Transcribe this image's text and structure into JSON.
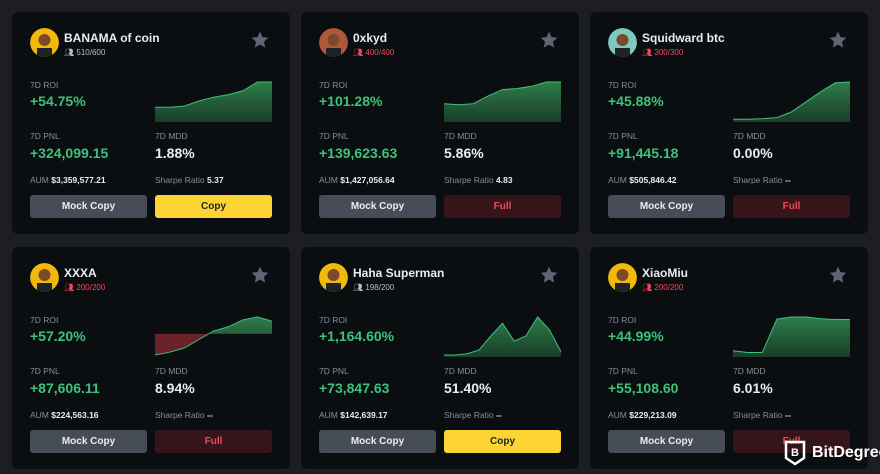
{
  "labels": {
    "roi": "7D ROI",
    "pnl": "7D PNL",
    "mdd": "7D MDD",
    "aum": "AUM",
    "sharpe": "Sharpe Ratio",
    "mock_copy": "Mock Copy"
  },
  "colors": {
    "positive": "#3cc27a",
    "negative": "#f6465d",
    "copy": "#fcd535",
    "card": "#0b0e11"
  },
  "traders": [
    {
      "name": "BANAMA of coin",
      "followers": "510/600",
      "full": false,
      "roi": "+54.75%",
      "pnl": "+324,099.15",
      "mdd": "1.88%",
      "aum": "$3,359,577.21",
      "sharpe": "5.37",
      "action": "Copy",
      "avatar_color": "#f0b90b",
      "spark": [
        20,
        20,
        22,
        30,
        36,
        40,
        46,
        60,
        60
      ]
    },
    {
      "name": "0xkyd",
      "followers": "400/400",
      "full": true,
      "roi": "+101.28%",
      "pnl": "+139,623.63",
      "mdd": "5.86%",
      "aum": "$1,427,056.64",
      "sharpe": "4.83",
      "action": "Full",
      "avatar_color": "#b0563a",
      "spark": [
        30,
        28,
        30,
        44,
        56,
        58,
        62,
        70,
        70
      ]
    },
    {
      "name": "Squidward btc",
      "followers": "300/300",
      "full": true,
      "roi": "+45.88%",
      "pnl": "+91,445.18",
      "mdd": "0.00%",
      "aum": "$505,846.42",
      "sharpe": "--",
      "action": "Full",
      "avatar_color": "#7fc8c0",
      "spark": [
        2,
        2,
        3,
        6,
        20,
        45,
        70,
        92,
        94
      ]
    },
    {
      "name": "XXXA",
      "followers": "200/200",
      "full": true,
      "roi": "+57.20%",
      "pnl": "+87,606.11",
      "mdd": "8.94%",
      "aum": "$224,563.16",
      "sharpe": "--",
      "action": "Full",
      "avatar_color": "#f0b90b",
      "spark": [
        -30,
        -26,
        -20,
        -8,
        4,
        10,
        20,
        24,
        18
      ]
    },
    {
      "name": "Haha Superman",
      "followers": "198/200",
      "full": false,
      "roi": "+1,164.60%",
      "pnl": "+73,847.63",
      "mdd": "51.40%",
      "aum": "$142,639.17",
      "sharpe": "--",
      "action": "Copy",
      "avatar_color": "#f0b90b",
      "spark": [
        0,
        0,
        2,
        8,
        30,
        50,
        22,
        30,
        60,
        40,
        5
      ]
    },
    {
      "name": "XiaoMiu",
      "followers": "200/200",
      "full": true,
      "roi": "+44.99%",
      "pnl": "+55,108.60",
      "mdd": "6.01%",
      "aum": "$229,213.09",
      "sharpe": "--",
      "action": "Full",
      "avatar_color": "#f0b90b",
      "spark": [
        10,
        6,
        6,
        85,
        90,
        90,
        86,
        84,
        84
      ]
    }
  ],
  "watermark": "BitDegree"
}
